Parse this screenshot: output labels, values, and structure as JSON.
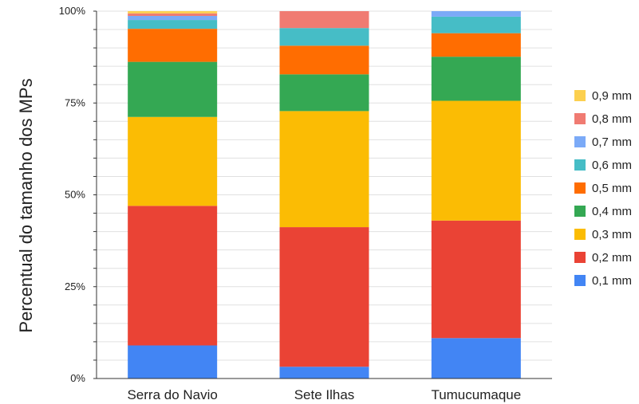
{
  "chart_data": {
    "type": "bar",
    "stacked": "percent",
    "title": "",
    "xlabel": "",
    "ylabel": "Percentual do tamanho dos MPs",
    "ylim": [
      0,
      100
    ],
    "yticks": [
      "0%",
      "25%",
      "50%",
      "75%",
      "100%"
    ],
    "grid": true,
    "legend_position": "right",
    "categories": [
      "Serra do Navio",
      "Sete Ilhas",
      "Tumucumaque"
    ],
    "series": [
      {
        "name": "0,1 mm",
        "color": "#4285F4",
        "values": [
          9.0,
          3.2,
          11.0
        ]
      },
      {
        "name": "0,2 mm",
        "color": "#EA4335",
        "values": [
          38.0,
          38.0,
          32.0
        ]
      },
      {
        "name": "0,3 mm",
        "color": "#FBBC04",
        "values": [
          24.2,
          31.6,
          32.6
        ]
      },
      {
        "name": "0,4 mm",
        "color": "#34A853",
        "values": [
          15.0,
          10.0,
          12.0
        ]
      },
      {
        "name": "0,5 mm",
        "color": "#FF6D01",
        "values": [
          9.0,
          7.8,
          6.4
        ]
      },
      {
        "name": "0,6 mm",
        "color": "#46BDC6",
        "values": [
          2.4,
          4.8,
          4.5
        ]
      },
      {
        "name": "0,7 mm",
        "color": "#7BAAF7",
        "values": [
          1.1,
          0.0,
          1.5
        ]
      },
      {
        "name": "0,8 mm",
        "color": "#F07B72",
        "values": [
          0.7,
          4.6,
          0.0
        ]
      },
      {
        "name": "0,9 mm",
        "color": "#FCD04F",
        "values": [
          0.6,
          0.0,
          0.0
        ]
      }
    ]
  }
}
